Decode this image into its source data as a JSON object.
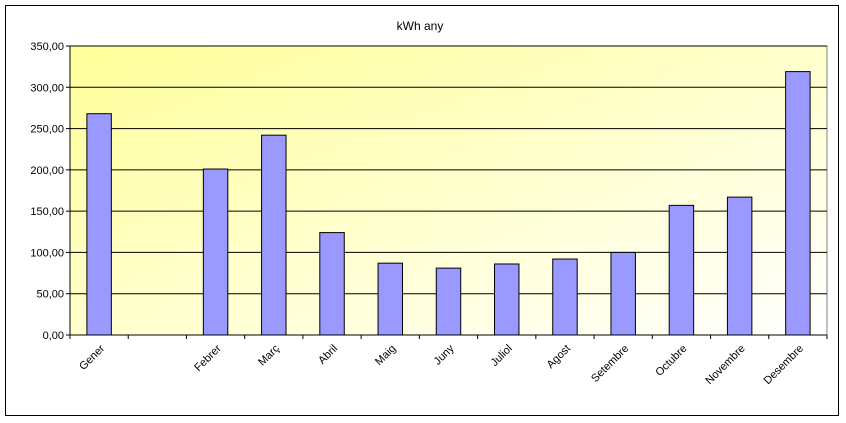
{
  "chart_data": {
    "type": "bar",
    "title": "kWh any",
    "xlabel": "",
    "ylabel": "",
    "categories": [
      "Gener",
      "",
      "Febrer",
      "Març",
      "Abril",
      "Maig",
      "Juny",
      "Juliol",
      "Agost",
      "Setembre",
      "Octubre",
      "Novembre",
      "Desembre"
    ],
    "values": [
      268,
      null,
      201,
      242,
      124,
      87,
      81,
      86,
      92,
      100,
      157,
      167,
      319
    ],
    "ylim": [
      0,
      350
    ],
    "yticks": [
      "0,00",
      "50,00",
      "100,00",
      "150,00",
      "200,00",
      "250,00",
      "300,00",
      "350,00"
    ],
    "grid": true,
    "legend": "none",
    "colors": {
      "bar_fill": "#9999ff",
      "bar_stroke": "#000000",
      "plot_bg_start": "#ffff99",
      "plot_bg_end": "#ffffff",
      "gridline": "#000000"
    }
  }
}
